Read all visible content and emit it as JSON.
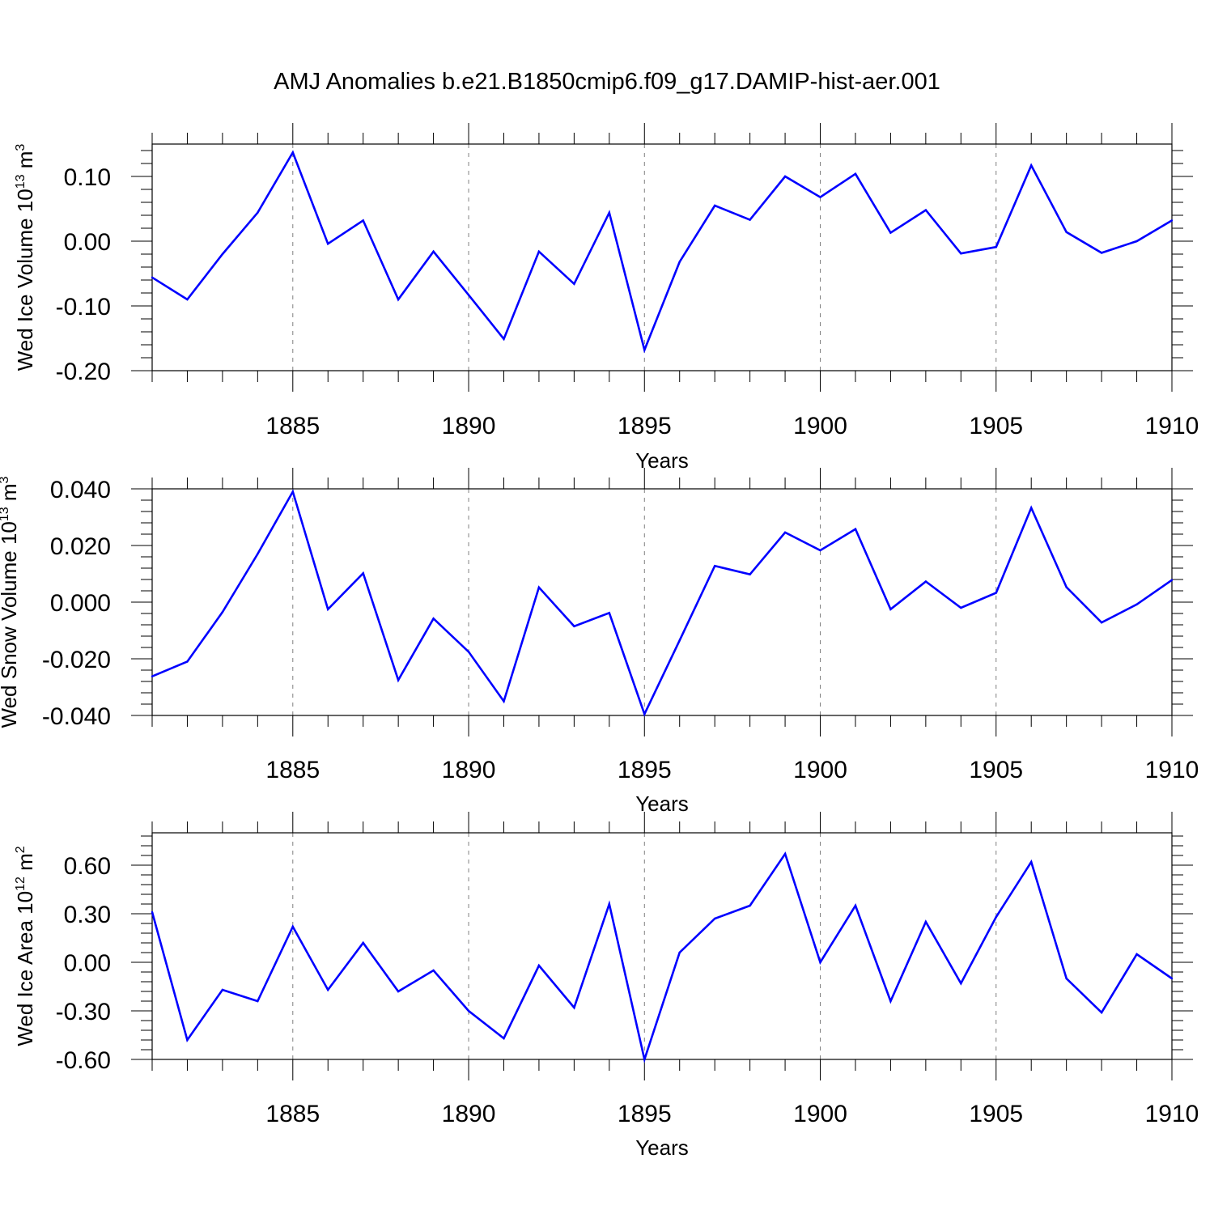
{
  "title": "AMJ Anomalies b.e21.B1850cmip6.f09_g17.DAMIP-hist-aer.001",
  "line_color": "#0000ff",
  "chart_data": [
    {
      "type": "line",
      "xlabel": "Years",
      "ylabel": "Wed Ice Volume 10",
      "ylabel_exp": "13",
      "ylabel_unit": "m",
      "ylabel_unit_exp": "3",
      "xlim": [
        1881,
        1910
      ],
      "ylim": [
        -0.2,
        0.15
      ],
      "xticks": [
        "1885",
        "1890",
        "1895",
        "1900",
        "1905",
        "1910"
      ],
      "yticks": [
        "0.10",
        "0.00",
        "-0.10",
        "-0.20"
      ],
      "grid": "dashed vertical at major x ticks",
      "x": [
        1881,
        1882,
        1883,
        1884,
        1885,
        1886,
        1887,
        1888,
        1889,
        1890,
        1891,
        1892,
        1893,
        1894,
        1895,
        1896,
        1897,
        1898,
        1899,
        1900,
        1901,
        1902,
        1903,
        1904,
        1905,
        1906,
        1907,
        1908,
        1909,
        1910
      ],
      "values": [
        -0.056,
        -0.09,
        -0.02,
        0.044,
        0.137,
        -0.004,
        0.032,
        -0.09,
        -0.016,
        -0.083,
        -0.151,
        -0.016,
        -0.066,
        0.044,
        -0.168,
        -0.032,
        0.055,
        0.033,
        0.1,
        0.068,
        0.104,
        0.013,
        0.048,
        -0.019,
        -0.009,
        0.117,
        0.014,
        -0.018,
        0.0,
        0.032
      ]
    },
    {
      "type": "line",
      "xlabel": "Years",
      "ylabel": "Wed Snow Volume 10",
      "ylabel_exp": "13",
      "ylabel_unit": "m",
      "ylabel_unit_exp": "3",
      "xlim": [
        1881,
        1910
      ],
      "ylim": [
        -0.04,
        0.04
      ],
      "xticks": [
        "1885",
        "1890",
        "1895",
        "1900",
        "1905",
        "1910"
      ],
      "yticks": [
        "0.040",
        "0.020",
        "0.000",
        "-0.020",
        "-0.040"
      ],
      "grid": "dashed vertical at major x ticks",
      "x": [
        1881,
        1882,
        1883,
        1884,
        1885,
        1886,
        1887,
        1888,
        1889,
        1890,
        1891,
        1892,
        1893,
        1894,
        1895,
        1896,
        1897,
        1898,
        1899,
        1900,
        1901,
        1902,
        1903,
        1904,
        1905,
        1906,
        1907,
        1908,
        1909,
        1910
      ],
      "values": [
        -0.0262,
        -0.021,
        -0.0035,
        0.017,
        0.039,
        -0.0025,
        0.0102,
        -0.0275,
        -0.0058,
        -0.0175,
        -0.035,
        0.0052,
        -0.0085,
        -0.0038,
        -0.0395,
        -0.0135,
        0.0128,
        0.0098,
        0.0246,
        0.0183,
        0.0258,
        -0.0025,
        0.0073,
        -0.002,
        0.0033,
        0.0333,
        0.0053,
        -0.0072,
        -0.0008,
        0.0078
      ]
    },
    {
      "type": "line",
      "xlabel": "Years",
      "ylabel": "Wed Ice Area 10",
      "ylabel_exp": "12",
      "ylabel_unit": "m",
      "ylabel_unit_exp": "2",
      "xlim": [
        1881,
        1910
      ],
      "ylim": [
        -0.6,
        0.8
      ],
      "xticks": [
        "1885",
        "1890",
        "1895",
        "1900",
        "1905",
        "1910"
      ],
      "yticks": [
        "0.60",
        "0.30",
        "0.00",
        "-0.30",
        "-0.60"
      ],
      "grid": "dashed vertical at major x ticks",
      "x": [
        1881,
        1882,
        1883,
        1884,
        1885,
        1886,
        1887,
        1888,
        1889,
        1890,
        1891,
        1892,
        1893,
        1894,
        1895,
        1896,
        1897,
        1898,
        1899,
        1900,
        1901,
        1902,
        1903,
        1904,
        1905,
        1906,
        1907,
        1908,
        1909,
        1910
      ],
      "values": [
        0.31,
        -0.48,
        -0.17,
        -0.24,
        0.22,
        -0.17,
        0.12,
        -0.18,
        -0.05,
        -0.3,
        -0.47,
        -0.02,
        -0.28,
        0.36,
        -0.6,
        0.06,
        0.27,
        0.35,
        0.67,
        0.0,
        0.35,
        -0.24,
        0.25,
        -0.13,
        0.28,
        0.62,
        -0.1,
        -0.31,
        0.05,
        -0.1
      ]
    }
  ]
}
